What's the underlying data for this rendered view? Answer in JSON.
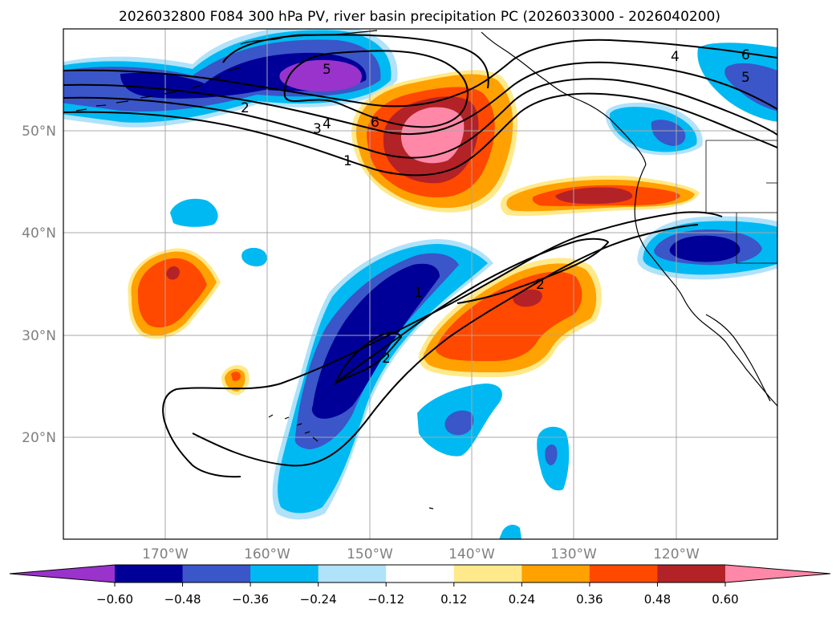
{
  "title": "2026032800 F084 300 hPa PV, river basin precipitation PC (2026033000 - 2026040200)",
  "lat_labels": [
    "50°N",
    "40°N",
    "30°N",
    "20°N"
  ],
  "lon_labels": [
    "170°W",
    "160°W",
    "150°W",
    "140°W",
    "130°W",
    "120°W"
  ],
  "pv_contour_labels": [
    "5",
    "2",
    "4",
    "3",
    "1",
    "6",
    "4",
    "6",
    "5",
    "1",
    "2",
    "2"
  ],
  "colorbar": {
    "tick_labels": [
      "−0.60",
      "−0.48",
      "−0.36",
      "−0.24",
      "−0.12",
      "0.12",
      "0.24",
      "0.36",
      "0.48",
      "0.60"
    ],
    "colors": [
      "#9933cc",
      "#000099",
      "#3a56c8",
      "#00b9f2",
      "#b0e2fa",
      "#ffffff",
      "#ffe98a",
      "#ffa100",
      "#ff4800",
      "#b32226",
      "#ff88a8"
    ]
  },
  "colors": {
    "neg_strong": "#000099",
    "neg_mid": "#3a56c8",
    "neg_light": "#00b9f2",
    "neg_faint": "#b0e2fa",
    "neg_extreme": "#9933cc",
    "pos_faint": "#ffe98a",
    "pos_light": "#ffa100",
    "pos_mid": "#ff4800",
    "pos_strong": "#b32226",
    "pos_extreme": "#ff88a8"
  }
}
